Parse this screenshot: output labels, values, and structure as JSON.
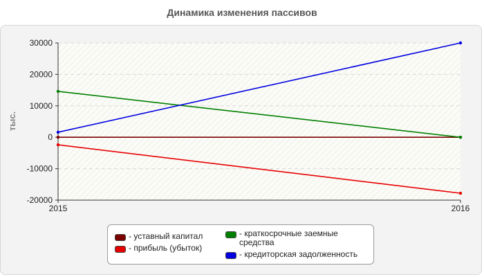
{
  "chart_data": {
    "type": "line",
    "title": "Динамика изменения пассивов",
    "ylabel": "тыс.",
    "xlabel": "",
    "x": [
      "2015",
      "2016"
    ],
    "ylim": [
      -20000,
      30000
    ],
    "yticks": [
      30000,
      20000,
      10000,
      0,
      -10000,
      -20000
    ],
    "grid": true,
    "legend_position": "bottom",
    "series": [
      {
        "name": "- уставный капитал",
        "values": [
          0,
          0
        ],
        "color": "#7a0000"
      },
      {
        "name": "- прибыль (убыток)",
        "values": [
          -2400,
          -17800
        ],
        "color": "#e60000"
      },
      {
        "name": "- краткосрочные заемные средства",
        "values": [
          14600,
          0
        ],
        "color": "#008000"
      },
      {
        "name": "- кредиторская задолженность",
        "values": [
          1600,
          30000
        ],
        "color": "#0000e0"
      }
    ]
  }
}
